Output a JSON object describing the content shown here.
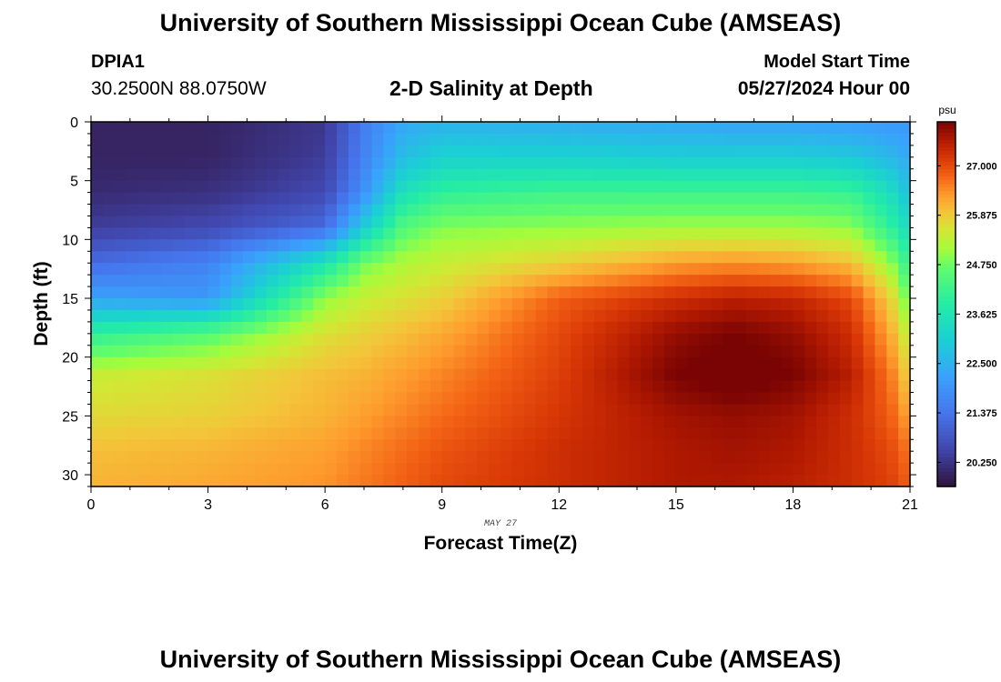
{
  "header": {
    "title": "University of Southern Mississippi Ocean Cube (AMSEAS)",
    "station": "DPIA1",
    "coords": "30.2500N  88.0750W",
    "subtitle": "2-D Salinity at Depth",
    "model_start_label": "Model Start Time",
    "model_start_value": "05/27/2024 Hour 00"
  },
  "footer": {
    "title": "University of Southern Mississippi Ocean Cube (AMSEAS)"
  },
  "chart_data": {
    "type": "heatmap",
    "title": "2-D Salinity at Depth",
    "xlabel": "Forecast Time(Z)",
    "ylabel": "Depth (ft)",
    "date_label": "MAY 27",
    "x_ticks": [
      "0",
      "3",
      "6",
      "9",
      "12",
      "15",
      "18",
      "21"
    ],
    "y_ticks": [
      "0",
      "5",
      "10",
      "15",
      "20",
      "25",
      "30"
    ],
    "xlim": [
      0,
      21
    ],
    "ylim": [
      0,
      31
    ],
    "colorbar": {
      "unit": "psu",
      "ticks": [
        "27.000",
        "25.875",
        "24.750",
        "23.625",
        "22.500",
        "21.375",
        "20.250"
      ],
      "range": [
        19.7,
        28.0
      ]
    },
    "x_values": [
      0,
      3,
      6,
      7,
      8,
      9,
      12,
      15,
      16.5,
      18,
      19.5,
      20.5,
      21
    ],
    "depth_values": [
      0,
      3,
      6,
      9,
      12,
      15,
      18,
      21.5,
      25,
      28,
      31
    ],
    "salinity_psu": [
      [
        20.0,
        20.0,
        20.3,
        21.5,
        22.3,
        22.5,
        22.4,
        22.3,
        22.2,
        22.2,
        22.1,
        22.0,
        22.0
      ],
      [
        20.0,
        20.0,
        20.4,
        21.6,
        22.7,
        23.1,
        23.1,
        23.0,
        23.0,
        23.0,
        22.9,
        22.6,
        22.3
      ],
      [
        20.1,
        20.2,
        20.6,
        21.9,
        23.5,
        24.0,
        24.2,
        24.2,
        24.2,
        24.2,
        24.1,
        23.4,
        22.7
      ],
      [
        20.4,
        20.6,
        21.2,
        23.0,
        24.5,
        24.9,
        25.0,
        25.1,
        25.1,
        25.1,
        25.0,
        24.0,
        23.3
      ],
      [
        21.2,
        21.6,
        23.6,
        24.8,
        25.2,
        25.4,
        25.8,
        26.3,
        26.4,
        26.3,
        26.0,
        25.0,
        24.0
      ],
      [
        22.2,
        22.0,
        25.0,
        25.4,
        25.6,
        25.8,
        26.8,
        27.3,
        27.5,
        27.4,
        27.0,
        25.8,
        24.6
      ],
      [
        24.0,
        24.5,
        25.6,
        25.8,
        26.0,
        26.2,
        27.0,
        27.8,
        28.0,
        27.8,
        27.3,
        26.2,
        25.2
      ],
      [
        25.4,
        25.6,
        26.0,
        26.1,
        26.3,
        26.5,
        27.1,
        28.0,
        28.2,
        28.0,
        27.5,
        26.6,
        25.7
      ],
      [
        25.7,
        25.8,
        26.1,
        26.3,
        26.5,
        26.7,
        27.2,
        27.7,
        27.8,
        27.7,
        27.3,
        26.8,
        26.2
      ],
      [
        26.0,
        26.1,
        26.3,
        26.5,
        26.7,
        26.9,
        27.3,
        27.6,
        27.7,
        27.6,
        27.3,
        27.0,
        26.6
      ],
      [
        26.1,
        26.2,
        26.4,
        26.6,
        26.8,
        27.0,
        27.3,
        27.6,
        27.6,
        27.5,
        27.3,
        27.1,
        26.8
      ]
    ]
  }
}
